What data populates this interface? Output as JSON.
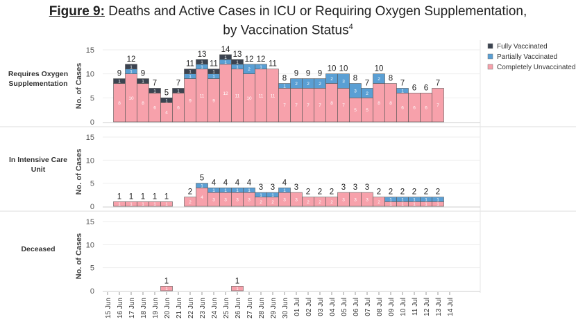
{
  "title": {
    "figure_label": "Figure 9:",
    "text": "Deaths and Active Cases in ICU or Requiring Oxygen Supplementation,",
    "line2": "by Vaccination Status",
    "superscript": "4"
  },
  "chart_data": {
    "type": "bar",
    "stacked": true,
    "categories": [
      "15 Jun",
      "16 Jun",
      "17 Jun",
      "18 Jun",
      "19 Jun",
      "20 Jun",
      "21 Jun",
      "22 Jun",
      "23 Jun",
      "24 Jun",
      "25 Jun",
      "26 Jun",
      "27 Jun",
      "28 Jun",
      "29 Jun",
      "30 Jun",
      "01 Jul",
      "02 Jul",
      "03 Jul",
      "04 Jul",
      "05 Jul",
      "06 Jul",
      "07 Jul",
      "08 Jul",
      "09 Jul",
      "10 Jul",
      "11 Jul",
      "12 Jul",
      "13 Jul",
      "14 Jul"
    ],
    "ylabel": "No. of Cases",
    "ylim": [
      0,
      15
    ],
    "yticks": [
      0,
      5,
      10,
      15
    ],
    "grid": true,
    "legend_position": "top-right",
    "legend": [
      {
        "name": "Fully Vaccinated",
        "color": "#3b4350"
      },
      {
        "name": "Partially Vaccinated",
        "color": "#5a9fd4"
      },
      {
        "name": "Completely Unvaccinated",
        "color": "#f7a1ab"
      }
    ],
    "panels": [
      {
        "label": "Requires Oxygen Supplementation",
        "series": [
          {
            "name": "Completely Unvaccinated",
            "values": [
              0,
              8,
              10,
              8,
              6,
              4,
              6,
              9,
              11,
              9,
              12,
              11,
              10,
              11,
              11,
              7,
              7,
              7,
              7,
              8,
              7,
              5,
              5,
              8,
              8,
              6,
              6,
              6,
              7,
              0
            ]
          },
          {
            "name": "Partially Vaccinated",
            "values": [
              0,
              0,
              1,
              0,
              0,
              0,
              0,
              1,
              1,
              1,
              1,
              1,
              2,
              1,
              0,
              1,
              2,
              2,
              2,
              2,
              3,
              3,
              2,
              2,
              0,
              1,
              0,
              0,
              0,
              0
            ]
          },
          {
            "name": "Fully Vaccinated",
            "values": [
              0,
              1,
              1,
              1,
              1,
              1,
              1,
              1,
              1,
              1,
              1,
              1,
              0,
              0,
              0,
              0,
              0,
              0,
              0,
              0,
              0,
              0,
              0,
              0,
              0,
              0,
              0,
              0,
              0,
              0
            ]
          }
        ]
      },
      {
        "label": "In Intensive Care Unit",
        "series": [
          {
            "name": "Completely Unvaccinated",
            "values": [
              0,
              1,
              1,
              1,
              1,
              1,
              0,
              2,
              4,
              3,
              3,
              3,
              3,
              2,
              2,
              3,
              3,
              2,
              2,
              2,
              3,
              3,
              3,
              2,
              1,
              1,
              1,
              1,
              1,
              0
            ]
          },
          {
            "name": "Partially Vaccinated",
            "values": [
              0,
              0,
              0,
              0,
              0,
              0,
              0,
              0,
              1,
              1,
              1,
              1,
              1,
              1,
              1,
              1,
              0,
              0,
              0,
              0,
              0,
              0,
              0,
              0,
              1,
              1,
              1,
              1,
              1,
              0
            ]
          },
          {
            "name": "Fully Vaccinated",
            "values": [
              0,
              0,
              0,
              0,
              0,
              0,
              0,
              0,
              0,
              0,
              0,
              0,
              0,
              0,
              0,
              0,
              0,
              0,
              0,
              0,
              0,
              0,
              0,
              0,
              0,
              0,
              0,
              0,
              0,
              0
            ]
          }
        ]
      },
      {
        "label": "Deceased",
        "series": [
          {
            "name": "Completely Unvaccinated",
            "values": [
              0,
              0,
              0,
              0,
              0,
              1,
              0,
              0,
              0,
              0,
              0,
              1,
              0,
              0,
              0,
              0,
              0,
              0,
              0,
              0,
              0,
              0,
              0,
              0,
              0,
              0,
              0,
              0,
              0,
              0
            ]
          },
          {
            "name": "Partially Vaccinated",
            "values": [
              0,
              0,
              0,
              0,
              0,
              0,
              0,
              0,
              0,
              0,
              0,
              0,
              0,
              0,
              0,
              0,
              0,
              0,
              0,
              0,
              0,
              0,
              0,
              0,
              0,
              0,
              0,
              0,
              0,
              0
            ]
          },
          {
            "name": "Fully Vaccinated",
            "values": [
              0,
              0,
              0,
              0,
              0,
              0,
              0,
              0,
              0,
              0,
              0,
              0,
              0,
              0,
              0,
              0,
              0,
              0,
              0,
              0,
              0,
              0,
              0,
              0,
              0,
              0,
              0,
              0,
              0,
              0
            ]
          }
        ]
      }
    ]
  }
}
